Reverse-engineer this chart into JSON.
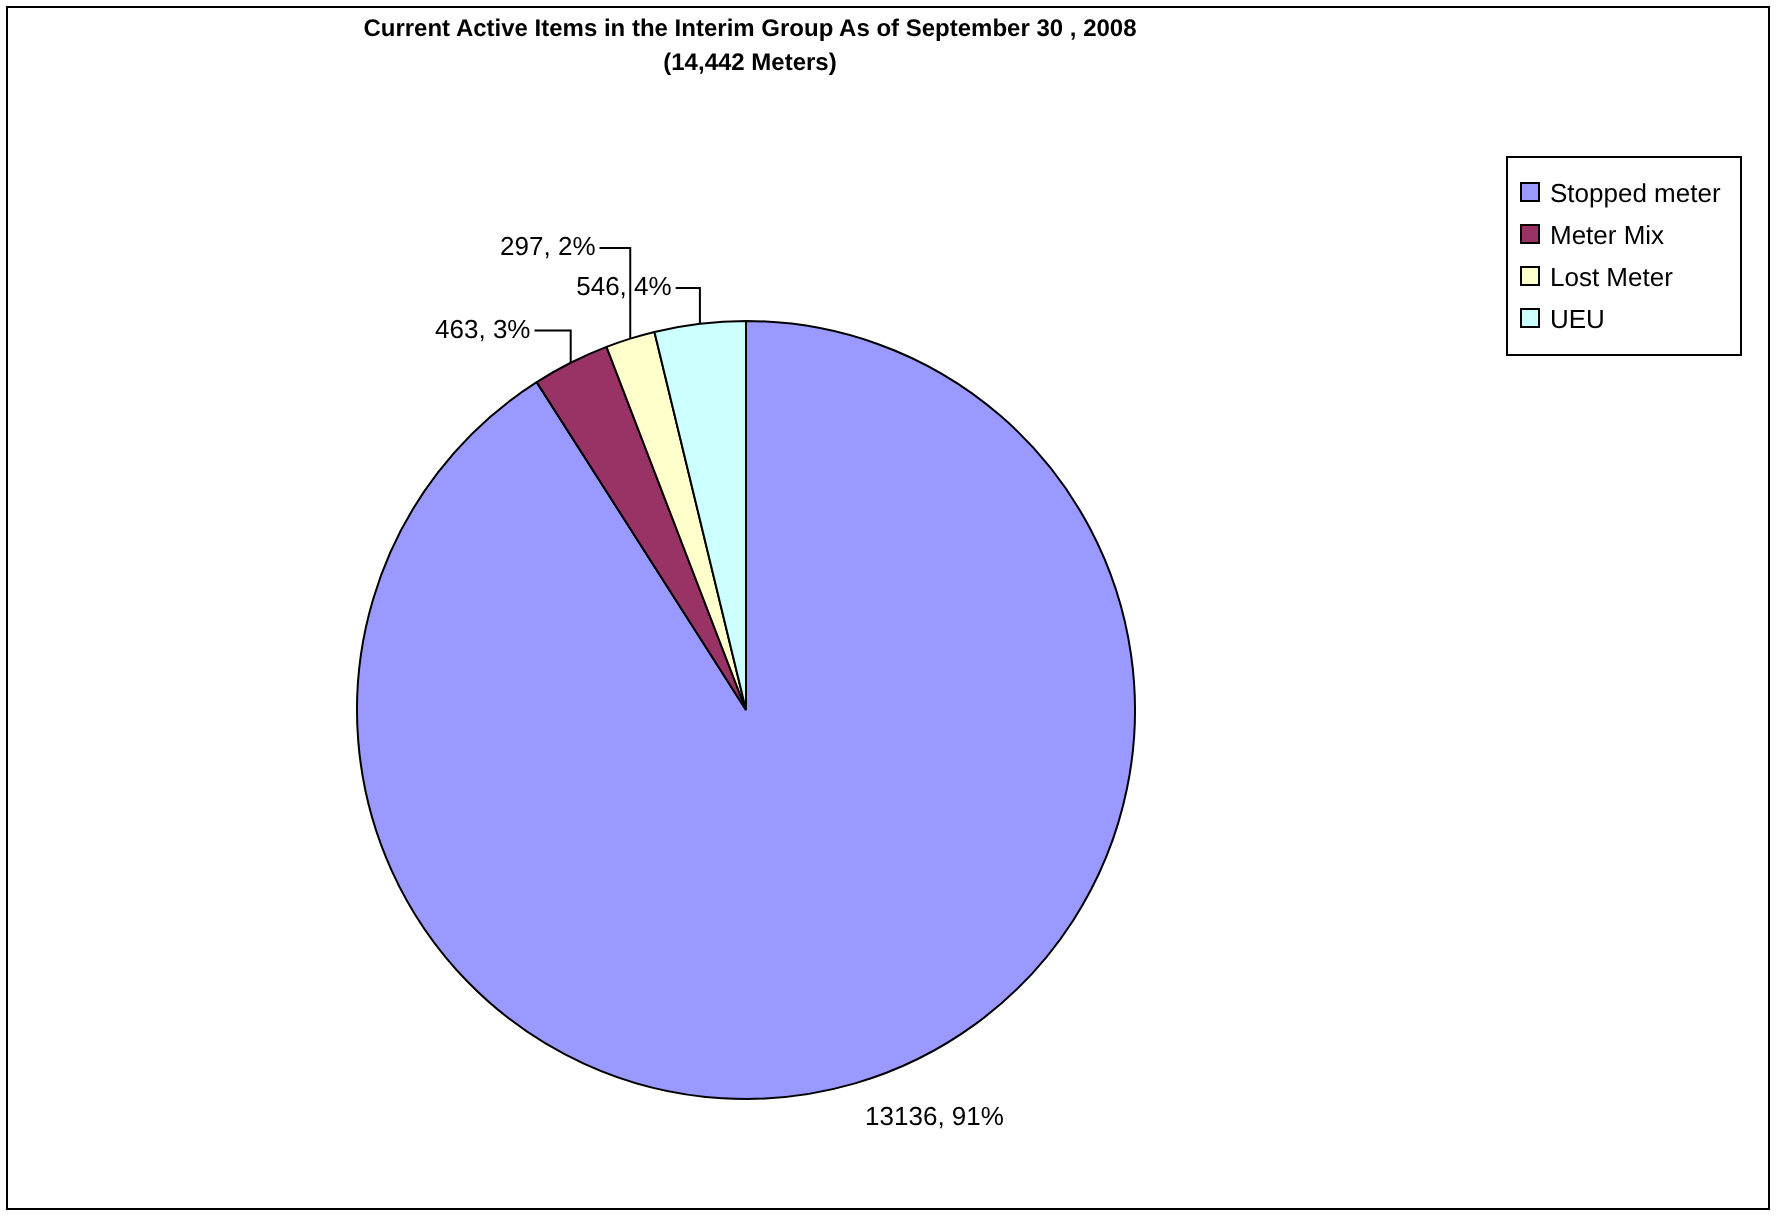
{
  "chart_data": {
    "type": "pie",
    "title": "Current Active Items in the Interim Group As of September 30 , 2008",
    "subtitle": "(14,442 Meters)",
    "categories": [
      "Stopped meter",
      "Meter Mix",
      "Lost Meter",
      "UEU"
    ],
    "values": [
      13136,
      463,
      297,
      546
    ],
    "value_labels": [
      "13136, 91%",
      "463, 3%",
      "297, 2%",
      "546, 4%"
    ],
    "colors": [
      "#9999ff",
      "#993366",
      "#ffffcc",
      "#ccffff"
    ],
    "legend": "top right"
  }
}
